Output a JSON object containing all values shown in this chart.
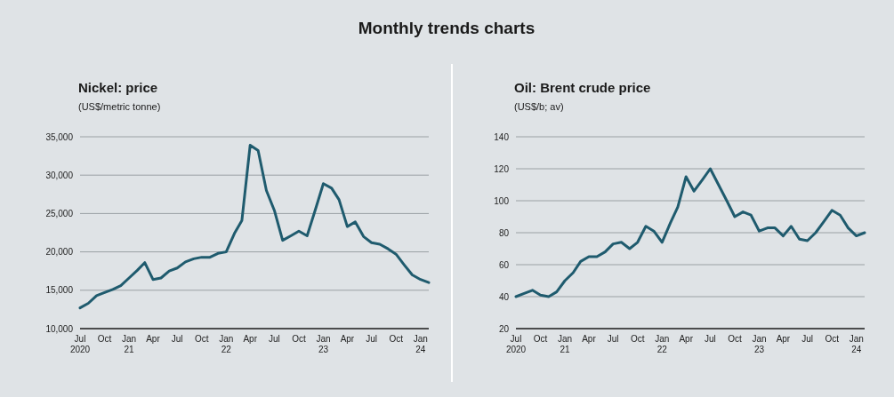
{
  "chart_data": [
    {
      "type": "other",
      "title": "Monthly trends charts"
    },
    {
      "type": "line",
      "title": "Nickel: price",
      "subtitle": "(US$/metric tonne)",
      "x": [
        "2020-07",
        "2020-08",
        "2020-09",
        "2020-10",
        "2020-11",
        "2020-12",
        "2021-01",
        "2021-02",
        "2021-03",
        "2021-04",
        "2021-05",
        "2021-06",
        "2021-07",
        "2021-08",
        "2021-09",
        "2021-10",
        "2021-11",
        "2021-12",
        "2022-01",
        "2022-02",
        "2022-03",
        "2022-04",
        "2022-05",
        "2022-06",
        "2022-07",
        "2022-08",
        "2022-09",
        "2022-10",
        "2022-11",
        "2022-12",
        "2023-01",
        "2023-02",
        "2023-03",
        "2023-04",
        "2023-05",
        "2023-06",
        "2023-07",
        "2023-08",
        "2023-09",
        "2023-10",
        "2023-11",
        "2023-12",
        "2024-01",
        "2024-02"
      ],
      "series": [
        {
          "color": "#1f5b6e",
          "values": [
            12700,
            13300,
            14300,
            14700,
            15100,
            15600,
            16600,
            17600,
            18600,
            16400,
            16600,
            17500,
            17900,
            18700,
            19100,
            19300,
            19300,
            19800,
            20000,
            22400,
            24100,
            33900,
            33200,
            28000,
            25400,
            21500,
            22100,
            22700,
            22100,
            25400,
            28900,
            28300,
            26800,
            23300,
            23900,
            22000,
            21200,
            21000,
            20400,
            19700,
            18300,
            17000,
            16400,
            16000
          ]
        }
      ],
      "xlim": [
        "2020-07",
        "2024-02"
      ],
      "xticks": [
        {
          "value": "2020-07",
          "label": "Jul\n2020"
        },
        {
          "value": "2020-10",
          "label": "Oct"
        },
        {
          "value": "2021-01",
          "label": "Jan\n21"
        },
        {
          "value": "2021-04",
          "label": "Apr"
        },
        {
          "value": "2021-07",
          "label": "Jul"
        },
        {
          "value": "2021-10",
          "label": "Oct"
        },
        {
          "value": "2022-01",
          "label": "Jan\n22"
        },
        {
          "value": "2022-04",
          "label": "Apr"
        },
        {
          "value": "2022-07",
          "label": "Jul"
        },
        {
          "value": "2022-10",
          "label": "Oct"
        },
        {
          "value": "2023-01",
          "label": "Jan\n23"
        },
        {
          "value": "2023-04",
          "label": "Apr"
        },
        {
          "value": "2023-07",
          "label": "Jul"
        },
        {
          "value": "2023-10",
          "label": "Oct"
        },
        {
          "value": "2024-01",
          "label": "Jan\n24"
        }
      ],
      "ylim": [
        10000,
        35000
      ],
      "yticks": [
        {
          "value": 10000,
          "label": "10,000"
        },
        {
          "value": 15000,
          "label": "15,000"
        },
        {
          "value": 20000,
          "label": "20,000"
        },
        {
          "value": 25000,
          "label": "25,000"
        },
        {
          "value": 30000,
          "label": "30,000"
        },
        {
          "value": 35000,
          "label": "35,000"
        }
      ],
      "grid": "y"
    },
    {
      "type": "line",
      "title": "Oil: Brent crude price",
      "subtitle": "(US$/b; av)",
      "x": [
        "2020-07",
        "2020-08",
        "2020-09",
        "2020-10",
        "2020-11",
        "2020-12",
        "2021-01",
        "2021-02",
        "2021-03",
        "2021-04",
        "2021-05",
        "2021-06",
        "2021-07",
        "2021-08",
        "2021-09",
        "2021-10",
        "2021-11",
        "2021-12",
        "2022-01",
        "2022-02",
        "2022-03",
        "2022-04",
        "2022-05",
        "2022-06",
        "2022-07",
        "2022-08",
        "2022-09",
        "2022-10",
        "2022-11",
        "2022-12",
        "2023-01",
        "2023-02",
        "2023-03",
        "2023-04",
        "2023-05",
        "2023-06",
        "2023-07",
        "2023-08",
        "2023-09",
        "2023-10",
        "2023-11",
        "2023-12",
        "2024-01",
        "2024-02"
      ],
      "series": [
        {
          "color": "#1f5b6e",
          "values": [
            40,
            42,
            44,
            41,
            40,
            43,
            50,
            55,
            62,
            65,
            65,
            68,
            73,
            74,
            70,
            74,
            84,
            81,
            74,
            86,
            96,
            115,
            106,
            113,
            120,
            110,
            100,
            90,
            93,
            91,
            81,
            83,
            83,
            78,
            84,
            76,
            75,
            80,
            87,
            94,
            91,
            83,
            78,
            80
          ]
        }
      ],
      "xlim": [
        "2020-07",
        "2024-02"
      ],
      "xticks": [
        {
          "value": "2020-07",
          "label": "Jul\n2020"
        },
        {
          "value": "2020-10",
          "label": "Oct"
        },
        {
          "value": "2021-01",
          "label": "Jan\n21"
        },
        {
          "value": "2021-04",
          "label": "Apr"
        },
        {
          "value": "2021-07",
          "label": "Jul"
        },
        {
          "value": "2021-10",
          "label": "Oct"
        },
        {
          "value": "2022-01",
          "label": "Jan\n22"
        },
        {
          "value": "2022-04",
          "label": "Apr"
        },
        {
          "value": "2022-07",
          "label": "Jul"
        },
        {
          "value": "2022-10",
          "label": "Oct"
        },
        {
          "value": "2023-01",
          "label": "Jan\n23"
        },
        {
          "value": "2023-04",
          "label": "Apr"
        },
        {
          "value": "2023-07",
          "label": "Jul"
        },
        {
          "value": "2023-10",
          "label": "Oct"
        },
        {
          "value": "2024-01",
          "label": "Jan\n24"
        }
      ],
      "ylim": [
        20,
        140
      ],
      "yticks": [
        20,
        40,
        60,
        80,
        100,
        120,
        140
      ],
      "grid": "y"
    }
  ]
}
